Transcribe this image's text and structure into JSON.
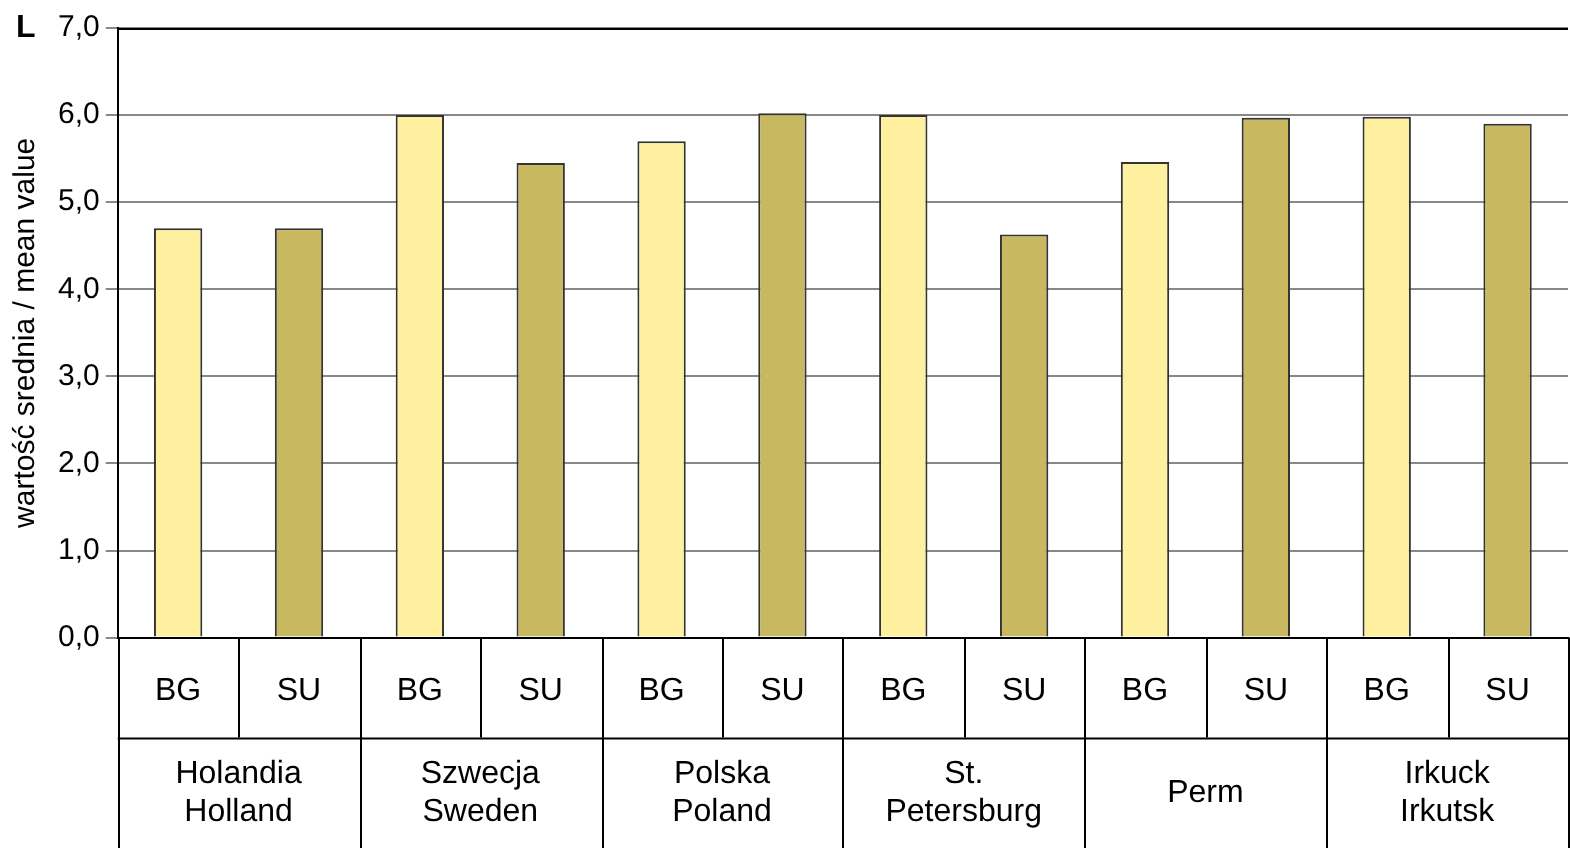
{
  "chart_data": {
    "type": "bar",
    "ylabel": "wartość srednia / mean value",
    "categories": [
      "BG",
      "SU",
      "BG",
      "SU",
      "BG",
      "SU",
      "BG",
      "SU",
      "BG",
      "SU",
      "BG",
      "SU"
    ],
    "values": [
      4.7,
      4.7,
      6.0,
      5.45,
      5.7,
      6.02,
      6.0,
      4.63,
      5.46,
      5.97,
      5.98,
      5.9
    ],
    "colors": [
      "#fff0a0",
      "#c8b860",
      "#fff0a0",
      "#c8b860",
      "#fff0a0",
      "#c8b860",
      "#fff0a0",
      "#c8b860",
      "#fff0a0",
      "#c8b860",
      "#fff0a0",
      "#c8b860"
    ],
    "ylim": [
      0,
      7
    ],
    "yticks": [
      {
        "value": 0,
        "label": "0,0"
      },
      {
        "value": 1,
        "label": "1,0"
      },
      {
        "value": 2,
        "label": "2,0"
      },
      {
        "value": 3,
        "label": "3,0"
      },
      {
        "value": 4,
        "label": "4,0"
      },
      {
        "value": 5,
        "label": "5,0"
      },
      {
        "value": 6,
        "label": "6,0"
      },
      {
        "value": 7,
        "label": "7,0"
      }
    ],
    "grid": "y",
    "legend": false,
    "annotations": [
      "L",
      "Holandia\nHolland",
      "Szwecja\nSweden",
      "Polska\nPoland",
      "St.\nPetersburg",
      "Perm",
      "Irkuck\nIrkutsk"
    ]
  }
}
